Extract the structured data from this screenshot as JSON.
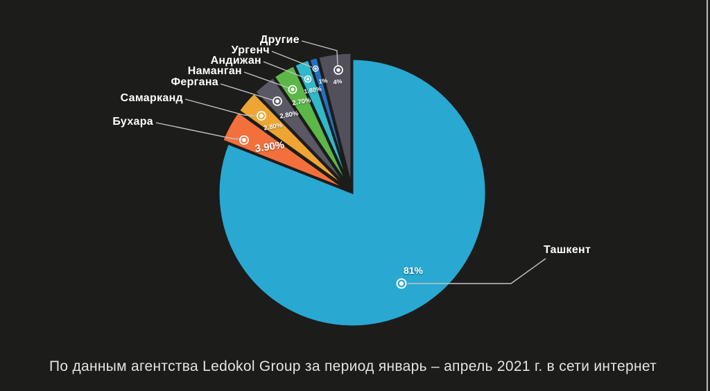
{
  "chart_data": {
    "type": "pie",
    "title": "",
    "legend_position": "none",
    "start_angle_deg": 0,
    "direction": "clockwise",
    "slices": [
      {
        "name": "Ташкент",
        "value": 81,
        "label": "81%",
        "color": "#29A8D2"
      },
      {
        "name": "Бухара",
        "value": 3.9,
        "label": "3.90%",
        "color": "#F3703C"
      },
      {
        "name": "Самарканд",
        "value": 2.8,
        "label": "2.80%",
        "color": "#EEA533"
      },
      {
        "name": "Фергана",
        "value": 2.8,
        "label": "2.80%",
        "color": "#595864"
      },
      {
        "name": "Наманган",
        "value": 2.7,
        "label": "2.70%",
        "color": "#5BB848"
      },
      {
        "name": "Андижан",
        "value": 1.8,
        "label": "1.80%",
        "color": "#30B9CA"
      },
      {
        "name": "Ургенч",
        "value": 1,
        "label": "1%",
        "color": "#2272C3"
      },
      {
        "name": "Другие",
        "value": 4,
        "label": "4%",
        "color": "#51505B"
      }
    ]
  },
  "caption": "По данным агентства Ledokol Group за период январь – апрель 2021 г. в сети интернет",
  "colors": {
    "background": "#1C1C1B",
    "slice_gap": "#1C1C1B",
    "label_text": "#FFFFFF",
    "leader_line": "#C4C4C4",
    "caption_text": "#E3E3E3",
    "edge_line": "#D9D9D9"
  }
}
